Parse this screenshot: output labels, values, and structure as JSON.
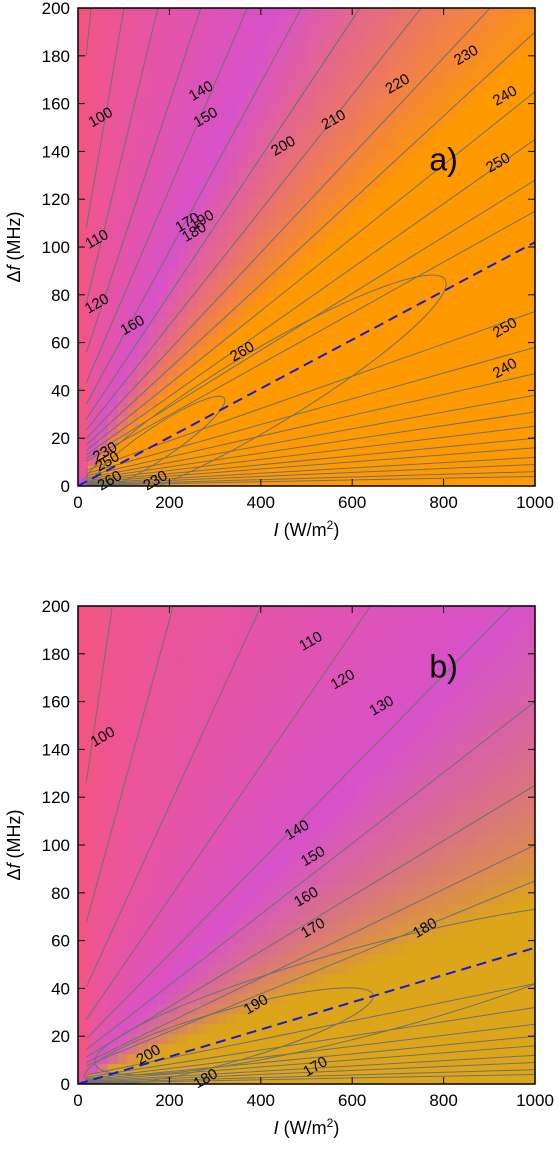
{
  "chart_data": [
    {
      "type": "heatmap",
      "panel_label": "a)",
      "xlabel": {
        "italic": "I",
        "text": " (W/m",
        "sup": "2",
        "end": ")"
      },
      "ylabel": {
        "prefix": "Δ",
        "italic": "f",
        "text": " (MHz)"
      },
      "xlim": [
        0,
        1000
      ],
      "ylim": [
        0,
        200
      ],
      "xticks": [
        "0",
        "200",
        "400",
        "600",
        "800",
        "1000"
      ],
      "yticks": [
        "0",
        "20",
        "40",
        "60",
        "80",
        "100",
        "120",
        "140",
        "160",
        "180",
        "200"
      ],
      "colors": {
        "low": "#f4557f",
        "mid": "#d752c9",
        "high": "#ff9900",
        "line": "#707070",
        "dash": "#1a1ad6"
      },
      "optimum_line": {
        "x": [
          0,
          1000
        ],
        "y": [
          0,
          102
        ]
      },
      "contour_labels": [
        {
          "text": "100",
          "x": 50,
          "y": 154
        },
        {
          "text": "110",
          "x": 42,
          "y": 103
        },
        {
          "text": "120",
          "x": 42,
          "y": 76
        },
        {
          "text": "160",
          "x": 120,
          "y": 67
        },
        {
          "text": "140",
          "x": 270,
          "y": 165
        },
        {
          "text": "150",
          "x": 280,
          "y": 154
        },
        {
          "text": "170",
          "x": 240,
          "y": 110
        },
        {
          "text": "180",
          "x": 255,
          "y": 106
        },
        {
          "text": "190",
          "x": 272,
          "y": 111
        },
        {
          "text": "200",
          "x": 450,
          "y": 142
        },
        {
          "text": "210",
          "x": 560,
          "y": 153
        },
        {
          "text": "220",
          "x": 700,
          "y": 168
        },
        {
          "text": "230",
          "x": 850,
          "y": 180
        },
        {
          "text": "240",
          "x": 935,
          "y": 163
        },
        {
          "text": "250",
          "x": 920,
          "y": 135
        },
        {
          "text": "250",
          "x": 935,
          "y": 66
        },
        {
          "text": "240",
          "x": 935,
          "y": 49
        },
        {
          "text": "260",
          "x": 360,
          "y": 56
        },
        {
          "text": "230",
          "x": 60,
          "y": 14
        },
        {
          "text": "250",
          "x": 65,
          "y": 10
        },
        {
          "text": "260",
          "x": 70,
          "y": 2
        },
        {
          "text": "230",
          "x": 170,
          "y": 2
        }
      ]
    },
    {
      "type": "heatmap",
      "panel_label": "b)",
      "xlabel": {
        "italic": "I",
        "text": " (W/m",
        "sup": "2",
        "end": ")"
      },
      "ylabel": {
        "prefix": "Δ",
        "italic": "f",
        "text": " (MHz)"
      },
      "xlim": [
        0,
        1000
      ],
      "ylim": [
        0,
        200
      ],
      "xticks": [
        "0",
        "200",
        "400",
        "600",
        "800",
        "1000"
      ],
      "yticks": [
        "0",
        "20",
        "40",
        "60",
        "80",
        "100",
        "120",
        "140",
        "160",
        "180",
        "200"
      ],
      "colors": {
        "low": "#f4557f",
        "mid": "#d752c9",
        "high": "#dca51a",
        "line": "#707070",
        "dash": "#1a1ad6"
      },
      "optimum_line": {
        "x": [
          0,
          1000
        ],
        "y": [
          0,
          57
        ]
      },
      "contour_labels": [
        {
          "text": "100",
          "x": 55,
          "y": 145
        },
        {
          "text": "110",
          "x": 510,
          "y": 185
        },
        {
          "text": "120",
          "x": 580,
          "y": 169
        },
        {
          "text": "130",
          "x": 665,
          "y": 158
        },
        {
          "text": "140",
          "x": 480,
          "y": 106
        },
        {
          "text": "150",
          "x": 515,
          "y": 95
        },
        {
          "text": "160",
          "x": 500,
          "y": 78
        },
        {
          "text": "170",
          "x": 515,
          "y": 65
        },
        {
          "text": "180",
          "x": 760,
          "y": 65
        },
        {
          "text": "190",
          "x": 390,
          "y": 33
        },
        {
          "text": "200",
          "x": 155,
          "y": 12
        },
        {
          "text": "170",
          "x": 520,
          "y": 7
        },
        {
          "text": "180",
          "x": 280,
          "y": 2
        }
      ]
    }
  ]
}
